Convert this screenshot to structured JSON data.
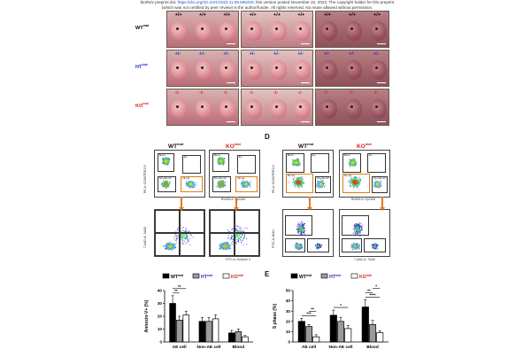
{
  "banner": {
    "line1_prefix": "bioRxiv preprint doi: ",
    "doi": "https://doi.org/10.1101/2023.11.08.566330",
    "line1_suffix": "; this version posted November 22, 2023. The copyright holder for this preprint",
    "line2": "(which was not certified by peer review) is the author/funder. All rights reserved. No reuse allowed without permission."
  },
  "colors": {
    "wt": "#000000",
    "ht": "#1f2fd1",
    "ko": "#d81b1b",
    "orange": "#e07b1a"
  },
  "embryo_panel": {
    "rows": [
      {
        "label": "WT",
        "sup": "mat",
        "color": "#000000",
        "tiles": [
          {
            "genotypes": [
              "+/+",
              "+/+",
              "+/+"
            ],
            "colors": [
              "#000",
              "#000",
              "#000"
            ]
          },
          {
            "genotypes": [
              "+/+",
              "+/+",
              "+/+"
            ],
            "colors": [
              "#000",
              "#000",
              "#000"
            ]
          },
          {
            "genotypes": [
              "+/+",
              "+/+",
              "+/+"
            ],
            "colors": [
              "#000",
              "#000",
              "#000"
            ]
          }
        ]
      },
      {
        "label": "HT",
        "sup": "mat",
        "color": "#1f2fd1",
        "tiles": [
          {
            "genotypes": [
              "+/-",
              "+/-",
              "+/-"
            ],
            "colors": [
              "#1f2fd1",
              "#1f2fd1",
              "#1f2fd1"
            ]
          },
          {
            "genotypes": [
              "+/-",
              "+/-",
              "+/-"
            ],
            "colors": [
              "#1f2fd1",
              "#1f2fd1",
              "#1f2fd1"
            ]
          },
          {
            "genotypes": [
              "+/-",
              "+/-",
              "+/-"
            ],
            "colors": [
              "#1f2fd1",
              "#1f2fd1",
              "#1f2fd1"
            ]
          }
        ]
      },
      {
        "label": "KO",
        "sup": "mat",
        "color": "#d81b1b",
        "tiles": [
          {
            "genotypes": [
              "-/-",
              "-/-",
              "-/-"
            ],
            "colors": [
              "#d81b1b",
              "#d81b1b",
              "#d81b1b"
            ]
          },
          {
            "genotypes": [
              "-/-",
              "-/-",
              "-/-"
            ],
            "colors": [
              "#d81b1b",
              "#d81b1b",
              "#d81b1b"
            ]
          },
          {
            "genotypes": [
              "-/-",
              "-/-",
              "-/-"
            ],
            "colors": [
              "#d81b1b",
              "#d81b1b",
              "#d81b1b"
            ]
          }
        ]
      }
    ]
  },
  "panel_C": {
    "wt_label": "WT",
    "ko_label": "KO",
    "sup": "mat",
    "gate_names": [
      "Blood",
      "Ery",
      "AE cell",
      "Non-AE cell"
    ],
    "upper_y_axis": "PE-A: CD45/TER119",
    "upper_x_axis": "BV605-A: EpCAM",
    "lower_y_axis": "7-AAD-A: 7AAD",
    "lower_x_axis": "FITC-A: Annexin V"
  },
  "panel_D": {
    "letter": "D",
    "wt_label": "WT",
    "ko_label": "KO",
    "sup": "mat",
    "gate_names": [
      "Blood",
      "Ery",
      "AE cell",
      "Non-AE cell"
    ],
    "upper_y_axis": "PE-A: CD45/TER119",
    "upper_x_axis": "BV605-A: EpCAM",
    "lower_y_axis": "FITC-A: BrdU",
    "lower_x_axis": "7-AAD-A: 7AAD"
  },
  "panel_E": {
    "letter": "E"
  },
  "chart_data": [
    {
      "type": "bar",
      "categories": [
        "AE cell",
        "Non-AE cell",
        "Blood"
      ],
      "series": [
        {
          "name": "WTmat",
          "fill": "#000000",
          "values": [
            30,
            16,
            7
          ],
          "errors": [
            6,
            3,
            2
          ]
        },
        {
          "name": "HTmat",
          "fill": "#9a9a9a",
          "values": [
            17,
            16,
            8
          ],
          "errors": [
            3,
            3,
            2
          ]
        },
        {
          "name": "KOmat",
          "fill": "#ffffff",
          "values": [
            21,
            18,
            4
          ],
          "errors": [
            3,
            3,
            1
          ]
        }
      ],
      "ylabel": "Annexin-V+ (%)",
      "ylim": [
        0,
        40
      ],
      "yticks": [
        0,
        10,
        20,
        30,
        40
      ],
      "significance": [
        {
          "category": "AE cell",
          "pair": [
            0,
            1
          ],
          "label": "**"
        },
        {
          "category": "AE cell",
          "pair": [
            0,
            2
          ],
          "label": "**"
        }
      ]
    },
    {
      "type": "bar",
      "categories": [
        "AE cell",
        "Non-AE cell",
        "Blood"
      ],
      "series": [
        {
          "name": "WTmat",
          "fill": "#000000",
          "values": [
            20,
            26,
            34
          ],
          "errors": [
            3,
            5,
            7
          ]
        },
        {
          "name": "HTmat",
          "fill": "#9a9a9a",
          "values": [
            15,
            20,
            17
          ],
          "errors": [
            2,
            4,
            4
          ]
        },
        {
          "name": "KOmat",
          "fill": "#ffffff",
          "values": [
            5,
            13,
            9
          ],
          "errors": [
            2,
            3,
            2
          ]
        }
      ],
      "ylabel": "S phase (%)",
      "ylim": [
        0,
        50
      ],
      "yticks": [
        0,
        10,
        20,
        30,
        40,
        50
      ],
      "significance": [
        {
          "category": "AE cell",
          "pair": [
            0,
            2
          ],
          "label": "***"
        },
        {
          "category": "AE cell",
          "pair": [
            1,
            2
          ],
          "label": "**"
        },
        {
          "category": "Non-AE cell",
          "pair": [
            0,
            2
          ],
          "label": "*"
        },
        {
          "category": "Blood",
          "pair": [
            0,
            2
          ],
          "label": "****"
        },
        {
          "category": "Blood",
          "pair": [
            0,
            1
          ],
          "label": "**"
        },
        {
          "category": "Blood",
          "pair": [
            1,
            2
          ],
          "label": "*"
        }
      ]
    }
  ],
  "legend": {
    "wt": "WT",
    "ht": "HT",
    "ko": "KO",
    "sup": "mat"
  }
}
